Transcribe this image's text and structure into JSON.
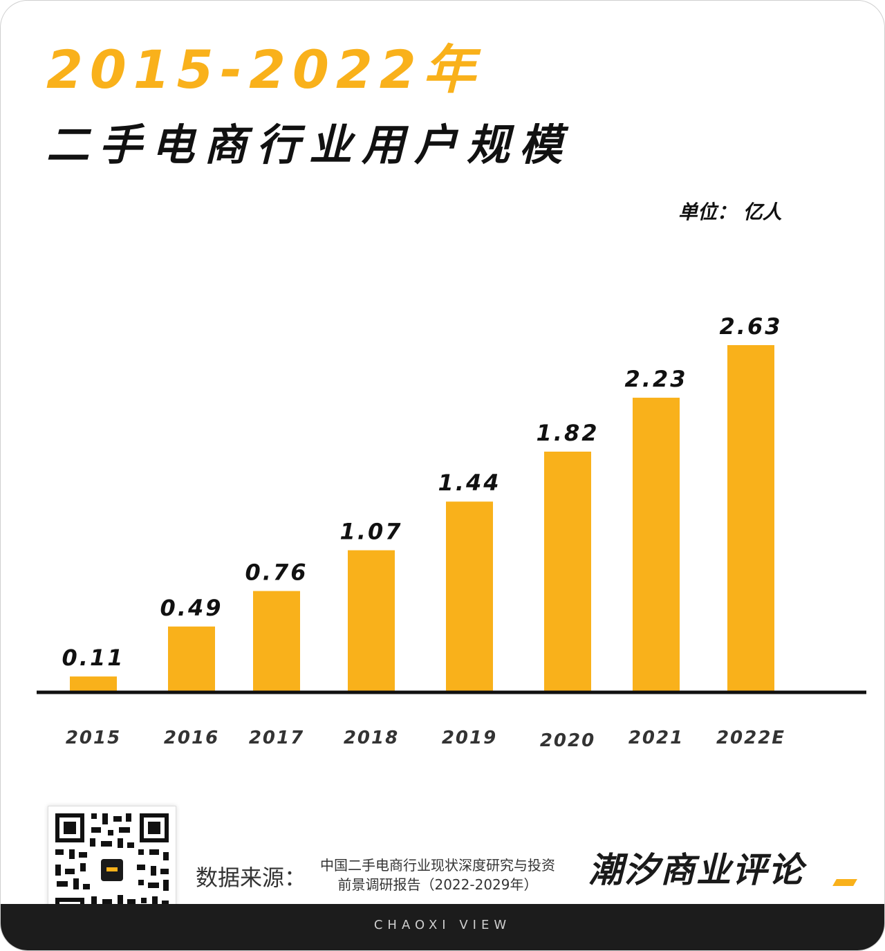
{
  "header": {
    "title_line1": "2015-2022年",
    "title_line2": "二手电商行业用户规模",
    "unit": "单位： 亿人"
  },
  "colors": {
    "bar": "#f9b11b",
    "accent": "#f9b11b",
    "text": "#111111",
    "footer_bg": "#1c1c1c"
  },
  "chart_data": {
    "type": "bar",
    "categories": [
      "2015",
      "2016",
      "2017",
      "2018",
      "2019",
      "2020",
      "2021",
      "2022E"
    ],
    "values": [
      0.11,
      0.49,
      0.76,
      1.07,
      1.44,
      1.82,
      2.23,
      2.63
    ],
    "value_labels": [
      "0.11",
      "0.49",
      "0.76",
      "1.07",
      "1.44",
      "1.82",
      "2.23",
      "2.63"
    ],
    "title": "二手电商行业用户规模",
    "ylabel": "",
    "xlabel": "",
    "unit": "亿人",
    "ylim": [
      0,
      2.63
    ],
    "grid": false,
    "legend": "none"
  },
  "footer": {
    "source_label": "数据来源：",
    "source_line1": "中国二手电商行业现状深度研究与投资",
    "source_line2": "前景调研报告（2022-2029年）",
    "brand": "潮汐商业评论",
    "tagline": "CHAOXI VIEW",
    "qr_icon": "qr-code-icon"
  }
}
